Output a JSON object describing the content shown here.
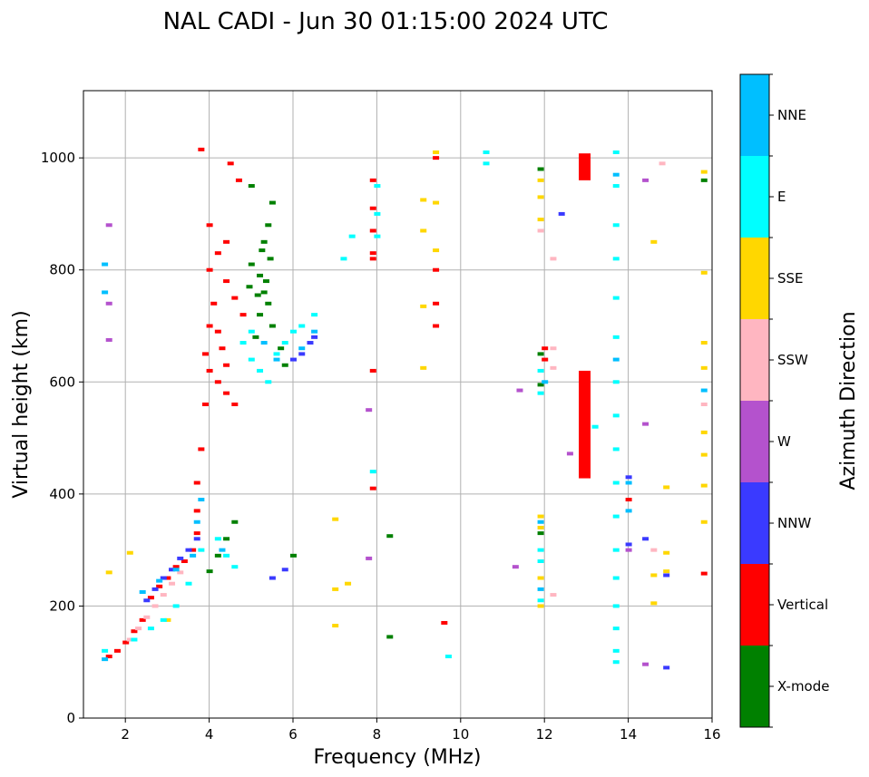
{
  "chart_data": {
    "type": "scatter",
    "title": "NAL CADI - Jun 30 01:15:00 2024 UTC",
    "xlabel": "Frequency (MHz)",
    "ylabel": "Virtual height (km)",
    "xlim": [
      1,
      16
    ],
    "ylim": [
      0,
      1120
    ],
    "xticks": [
      2,
      4,
      6,
      8,
      10,
      12,
      14,
      16
    ],
    "yticks": [
      0,
      200,
      400,
      600,
      800,
      1000
    ],
    "grid": true,
    "colorbar": {
      "label": "Azimuth Direction",
      "categories": [
        "X-mode",
        "Vertical",
        "NNW",
        "W",
        "SSW",
        "SSE",
        "E",
        "NNE"
      ],
      "colors": [
        "#008000",
        "#ff0000",
        "#3a3aff",
        "#b452cd",
        "#ffb6c1",
        "#ffd700",
        "#00ffff",
        "#00bfff"
      ]
    },
    "series": [
      {
        "name": "X-mode",
        "points": [
          [
            4.0,
            262
          ],
          [
            4.2,
            290
          ],
          [
            4.4,
            320
          ],
          [
            4.6,
            350
          ],
          [
            5.0,
            810
          ],
          [
            5.2,
            790
          ],
          [
            5.3,
            760
          ],
          [
            5.4,
            740
          ],
          [
            5.5,
            700
          ],
          [
            5.1,
            680
          ],
          [
            5.2,
            720
          ],
          [
            5.3,
            850
          ],
          [
            5.4,
            880
          ],
          [
            5.5,
            920
          ],
          [
            5.0,
            950
          ],
          [
            5.7,
            660
          ],
          [
            5.8,
            630
          ],
          [
            6.0,
            290
          ],
          [
            8.3,
            325
          ],
          [
            8.3,
            145
          ],
          [
            11.9,
            980
          ],
          [
            11.9,
            650
          ],
          [
            11.9,
            595
          ],
          [
            11.9,
            330
          ],
          [
            15.8,
            960
          ],
          [
            5.25,
            835
          ],
          [
            5.35,
            780
          ],
          [
            5.45,
            820
          ],
          [
            5.15,
            755
          ],
          [
            4.95,
            770
          ]
        ]
      },
      {
        "name": "Vertical",
        "points": [
          [
            1.6,
            110
          ],
          [
            1.8,
            120
          ],
          [
            2.0,
            135
          ],
          [
            2.2,
            155
          ],
          [
            2.4,
            175
          ],
          [
            2.6,
            215
          ],
          [
            2.8,
            235
          ],
          [
            3.0,
            250
          ],
          [
            3.2,
            270
          ],
          [
            3.4,
            280
          ],
          [
            3.6,
            300
          ],
          [
            3.7,
            330
          ],
          [
            3.7,
            370
          ],
          [
            3.7,
            420
          ],
          [
            3.8,
            480
          ],
          [
            3.9,
            560
          ],
          [
            4.0,
            620
          ],
          [
            3.9,
            650
          ],
          [
            4.0,
            700
          ],
          [
            4.1,
            740
          ],
          [
            4.2,
            690
          ],
          [
            4.3,
            660
          ],
          [
            4.4,
            630
          ],
          [
            4.0,
            800
          ],
          [
            4.2,
            830
          ],
          [
            4.4,
            780
          ],
          [
            4.6,
            750
          ],
          [
            4.8,
            720
          ],
          [
            4.0,
            880
          ],
          [
            4.4,
            850
          ],
          [
            3.8,
            1015
          ],
          [
            4.5,
            990
          ],
          [
            4.7,
            960
          ],
          [
            4.2,
            600
          ],
          [
            4.4,
            580
          ],
          [
            4.6,
            560
          ],
          [
            7.9,
            960
          ],
          [
            7.9,
            910
          ],
          [
            7.9,
            870
          ],
          [
            7.9,
            830
          ],
          [
            7.9,
            820
          ],
          [
            7.9,
            620
          ],
          [
            7.9,
            410
          ],
          [
            9.4,
            800
          ],
          [
            9.4,
            740
          ],
          [
            9.4,
            700
          ],
          [
            9.4,
            1000
          ],
          [
            9.6,
            170
          ],
          [
            12.0,
            660
          ],
          [
            12.0,
            640
          ],
          [
            12.9,
            470
          ],
          [
            14.0,
            390
          ],
          [
            15.8,
            258
          ]
        ]
      },
      {
        "name": "NNW",
        "points": [
          [
            2.5,
            210
          ],
          [
            2.7,
            230
          ],
          [
            2.9,
            250
          ],
          [
            3.1,
            265
          ],
          [
            3.3,
            285
          ],
          [
            3.5,
            300
          ],
          [
            3.7,
            320
          ],
          [
            5.5,
            250
          ],
          [
            5.8,
            265
          ],
          [
            6.0,
            640
          ],
          [
            6.2,
            650
          ],
          [
            6.4,
            670
          ],
          [
            6.5,
            680
          ],
          [
            12.4,
            900
          ],
          [
            14.0,
            310
          ],
          [
            14.0,
            430
          ],
          [
            14.4,
            320
          ],
          [
            14.9,
            255
          ],
          [
            14.9,
            90
          ]
        ]
      },
      {
        "name": "W",
        "points": [
          [
            1.6,
            880
          ],
          [
            1.6,
            740
          ],
          [
            1.6,
            675
          ],
          [
            7.8,
            550
          ],
          [
            7.8,
            285
          ],
          [
            11.4,
            585
          ],
          [
            11.3,
            270
          ],
          [
            12.6,
            472
          ],
          [
            14.0,
            300
          ],
          [
            14.4,
            525
          ],
          [
            14.4,
            96
          ],
          [
            14.4,
            960
          ]
        ]
      },
      {
        "name": "SSW",
        "points": [
          [
            2.1,
            140
          ],
          [
            2.3,
            160
          ],
          [
            2.5,
            180
          ],
          [
            2.7,
            200
          ],
          [
            2.9,
            220
          ],
          [
            3.1,
            240
          ],
          [
            3.3,
            260
          ],
          [
            12.2,
            660
          ],
          [
            12.2,
            625
          ],
          [
            12.2,
            820
          ],
          [
            12.2,
            220
          ],
          [
            11.9,
            870
          ],
          [
            14.6,
            300
          ],
          [
            14.8,
            990
          ],
          [
            15.8,
            560
          ]
        ]
      },
      {
        "name": "SSE",
        "points": [
          [
            1.6,
            260
          ],
          [
            2.1,
            295
          ],
          [
            3.0,
            175
          ],
          [
            7.0,
            165
          ],
          [
            7.0,
            230
          ],
          [
            7.0,
            355
          ],
          [
            7.3,
            240
          ],
          [
            9.1,
            925
          ],
          [
            9.1,
            870
          ],
          [
            9.1,
            735
          ],
          [
            9.1,
            625
          ],
          [
            9.4,
            920
          ],
          [
            9.4,
            835
          ],
          [
            9.4,
            1010
          ],
          [
            11.9,
            960
          ],
          [
            11.9,
            930
          ],
          [
            11.9,
            890
          ],
          [
            11.9,
            360
          ],
          [
            11.9,
            340
          ],
          [
            11.9,
            250
          ],
          [
            11.9,
            200
          ],
          [
            14.6,
            850
          ],
          [
            14.6,
            255
          ],
          [
            14.6,
            205
          ],
          [
            14.9,
            295
          ],
          [
            14.9,
            262
          ],
          [
            14.9,
            412
          ],
          [
            15.8,
            975
          ],
          [
            15.8,
            795
          ],
          [
            15.8,
            670
          ],
          [
            15.8,
            625
          ],
          [
            15.8,
            510
          ],
          [
            15.8,
            470
          ],
          [
            15.8,
            415
          ],
          [
            15.8,
            350
          ]
        ]
      },
      {
        "name": "E",
        "points": [
          [
            1.5,
            120
          ],
          [
            2.2,
            140
          ],
          [
            2.6,
            160
          ],
          [
            2.9,
            175
          ],
          [
            3.2,
            200
          ],
          [
            3.5,
            240
          ],
          [
            3.8,
            300
          ],
          [
            4.2,
            320
          ],
          [
            4.4,
            290
          ],
          [
            4.6,
            270
          ],
          [
            5.0,
            640
          ],
          [
            5.2,
            620
          ],
          [
            5.4,
            600
          ],
          [
            5.6,
            650
          ],
          [
            5.8,
            670
          ],
          [
            6.0,
            690
          ],
          [
            6.2,
            700
          ],
          [
            6.5,
            720
          ],
          [
            4.8,
            670
          ],
          [
            5.0,
            690
          ],
          [
            8.0,
            950
          ],
          [
            8.0,
            900
          ],
          [
            8.0,
            860
          ],
          [
            7.9,
            440
          ],
          [
            7.2,
            820
          ],
          [
            7.4,
            860
          ],
          [
            9.7,
            110
          ],
          [
            10.6,
            1010
          ],
          [
            10.6,
            990
          ],
          [
            11.9,
            620
          ],
          [
            11.9,
            580
          ],
          [
            11.9,
            300
          ],
          [
            11.9,
            280
          ],
          [
            11.9,
            210
          ],
          [
            13.2,
            520
          ],
          [
            13.7,
            1010
          ],
          [
            13.7,
            950
          ],
          [
            13.7,
            880
          ],
          [
            13.7,
            820
          ],
          [
            13.7,
            750
          ],
          [
            13.7,
            680
          ],
          [
            13.7,
            600
          ],
          [
            13.7,
            540
          ],
          [
            13.7,
            480
          ],
          [
            13.7,
            420
          ],
          [
            13.7,
            360
          ],
          [
            13.7,
            300
          ],
          [
            13.7,
            250
          ],
          [
            13.7,
            200
          ],
          [
            13.7,
            160
          ],
          [
            13.7,
            120
          ],
          [
            13.7,
            100
          ]
        ]
      },
      {
        "name": "NNE",
        "points": [
          [
            1.5,
            810
          ],
          [
            1.5,
            760
          ],
          [
            1.5,
            105
          ],
          [
            2.4,
            225
          ],
          [
            2.8,
            245
          ],
          [
            3.2,
            265
          ],
          [
            3.6,
            290
          ],
          [
            3.7,
            350
          ],
          [
            3.8,
            390
          ],
          [
            4.3,
            300
          ],
          [
            5.3,
            670
          ],
          [
            5.6,
            640
          ],
          [
            6.2,
            660
          ],
          [
            6.5,
            690
          ],
          [
            11.9,
            350
          ],
          [
            11.9,
            230
          ],
          [
            12.0,
            600
          ],
          [
            13.7,
            970
          ],
          [
            13.7,
            640
          ],
          [
            14.0,
            420
          ],
          [
            14.0,
            370
          ],
          [
            15.8,
            585
          ]
        ]
      }
    ]
  }
}
